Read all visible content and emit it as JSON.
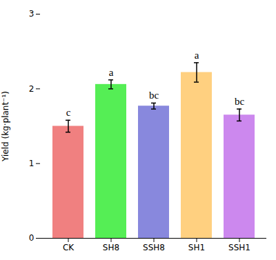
{
  "chart_data": {
    "type": "bar",
    "categories": [
      "CK",
      "SH8",
      "SSH8",
      "SH1",
      "SSH1"
    ],
    "values": [
      1.5,
      2.06,
      1.77,
      2.22,
      1.65
    ],
    "errors": [
      0.08,
      0.06,
      0.04,
      0.13,
      0.08
    ],
    "colors": [
      "#F08080",
      "#55EE55",
      "#8888DD",
      "#FFD080",
      "#CC88EE"
    ],
    "labels": [
      "c",
      "a",
      "bc",
      "a",
      "bc"
    ],
    "ylabel": "Yield (kg·plant⁻¹)",
    "ylim": [
      0,
      3
    ],
    "yticks": [
      0,
      1,
      2,
      3
    ],
    "grid": false
  }
}
